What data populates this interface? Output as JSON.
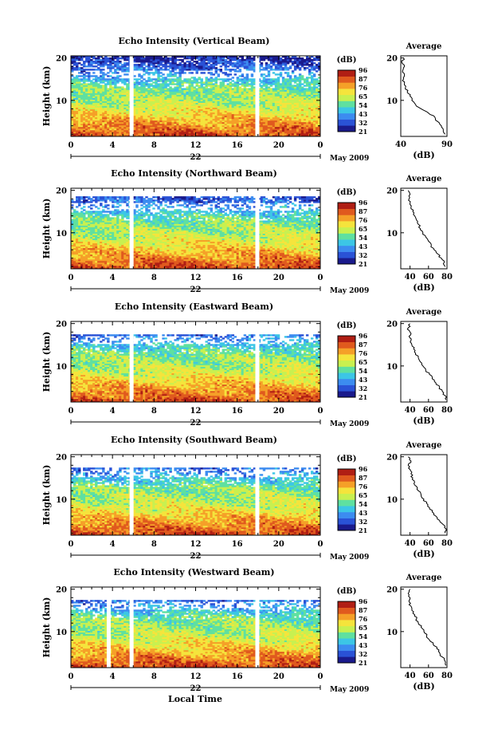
{
  "figure": {
    "xlabel": "Local Time",
    "colorbar_unit": "(dB)",
    "colorbar_ticks": [
      "96",
      "87",
      "76",
      "65",
      "54",
      "43",
      "32",
      "21"
    ],
    "colors": {
      "scale": [
        "#1a1a8c",
        "#2a52d6",
        "#3c8cf0",
        "#3cc6e6",
        "#5fe0a0",
        "#c8f050",
        "#f5e43c",
        "#f5a028",
        "#e05a1e",
        "#b01e14"
      ],
      "gap": "#ffffff",
      "line": "#000000"
    }
  },
  "chart_data": [
    {
      "type": "heatmap",
      "title": "Echo Intensity (Vertical Beam)",
      "ylabel": "Height (km)",
      "x_ticks": [
        "0",
        "4",
        "8",
        "12",
        "16",
        "20",
        "0"
      ],
      "xlim": [
        0,
        24
      ],
      "ylim": [
        1.5,
        20.5
      ],
      "y_ticks": [
        10,
        20
      ],
      "date_label": "22",
      "month_label": "May 2009",
      "colorbar": {
        "min": 21,
        "max": 96,
        "ticks": [
          96,
          87,
          76,
          65,
          54,
          43,
          32,
          21
        ],
        "unit": "(dB)"
      },
      "data_gaps_hours": [
        5.8,
        17.9
      ],
      "noise_top_km": 20,
      "profile": {
        "title": "Average",
        "xlabel": "(dB)",
        "x_ticks": [
          40,
          90
        ],
        "xlim": [
          40,
          90
        ],
        "y_ticks": [
          10,
          20
        ],
        "ylim": [
          1.5,
          20.5
        ],
        "height_km": [
          2,
          3,
          4,
          5,
          6,
          7,
          8,
          9,
          10,
          11,
          12,
          13,
          14,
          15,
          16,
          17,
          18,
          19,
          20
        ],
        "values_db": [
          88,
          86,
          84,
          80,
          77,
          70,
          62,
          56,
          52,
          50,
          47,
          45,
          44,
          43,
          44,
          42,
          44,
          41,
          43
        ]
      }
    },
    {
      "type": "heatmap",
      "title": "Echo Intensity (Northward Beam)",
      "ylabel": "Height (km)",
      "x_ticks": [
        "0",
        "4",
        "8",
        "12",
        "16",
        "20",
        "0"
      ],
      "xlim": [
        0,
        24
      ],
      "ylim": [
        1.5,
        20.5
      ],
      "y_ticks": [
        10,
        20
      ],
      "date_label": "22",
      "month_label": "May 2009",
      "colorbar": {
        "min": 21,
        "max": 96,
        "ticks": [
          96,
          87,
          76,
          65,
          54,
          43,
          32,
          21
        ],
        "unit": "(dB)"
      },
      "data_gaps_hours": [
        5.8,
        17.9
      ],
      "noise_top_km": 18,
      "profile": {
        "title": "Average",
        "xlabel": "(dB)",
        "x_ticks": [
          40,
          60,
          80
        ],
        "xlim": [
          30,
          80
        ],
        "y_ticks": [
          10,
          20
        ],
        "ylim": [
          1.5,
          20.5
        ],
        "height_km": [
          2,
          3,
          4,
          5,
          6,
          7,
          8,
          9,
          10,
          11,
          12,
          13,
          14,
          15,
          16,
          17,
          18,
          19,
          20
        ],
        "values_db": [
          78,
          77,
          74,
          70,
          66,
          63,
          60,
          57,
          54,
          51,
          49,
          47,
          45,
          43,
          41,
          40,
          39,
          40,
          38
        ]
      }
    },
    {
      "type": "heatmap",
      "title": "Echo Intensity (Eastward Beam)",
      "ylabel": "Height (km)",
      "x_ticks": [
        "0",
        "4",
        "8",
        "12",
        "16",
        "20",
        "0"
      ],
      "xlim": [
        0,
        24
      ],
      "ylim": [
        1.5,
        20.5
      ],
      "y_ticks": [
        10,
        20
      ],
      "date_label": "22",
      "month_label": "May 2009",
      "colorbar": {
        "min": 21,
        "max": 96,
        "ticks": [
          96,
          87,
          76,
          65,
          54,
          43,
          32,
          21
        ],
        "unit": "(dB)"
      },
      "data_gaps_hours": [
        5.8,
        17.9
      ],
      "noise_top_km": 17,
      "profile": {
        "title": "Average",
        "xlabel": "(dB)",
        "x_ticks": [
          40,
          60,
          80
        ],
        "xlim": [
          30,
          80
        ],
        "y_ticks": [
          10,
          20
        ],
        "ylim": [
          1.5,
          20.5
        ],
        "height_km": [
          2,
          3,
          4,
          5,
          6,
          7,
          8,
          9,
          10,
          11,
          12,
          13,
          14,
          15,
          16,
          17,
          18,
          19,
          20
        ],
        "values_db": [
          79,
          78,
          75,
          72,
          68,
          64,
          61,
          57,
          54,
          51,
          49,
          46,
          44,
          42,
          41,
          39,
          40,
          38,
          40
        ]
      }
    },
    {
      "type": "heatmap",
      "title": "Echo Intensity (Southward Beam)",
      "ylabel": "Height (km)",
      "x_ticks": [
        "0",
        "4",
        "8",
        "12",
        "16",
        "20",
        "0"
      ],
      "xlim": [
        0,
        24
      ],
      "ylim": [
        1.5,
        20.5
      ],
      "y_ticks": [
        10,
        20
      ],
      "date_label": "22",
      "month_label": "May 2009",
      "colorbar": {
        "min": 21,
        "max": 96,
        "ticks": [
          96,
          87,
          76,
          65,
          54,
          43,
          32,
          21
        ],
        "unit": "(dB)"
      },
      "data_gaps_hours": [
        5.8,
        17.9
      ],
      "noise_top_km": 17,
      "profile": {
        "title": "Average",
        "xlabel": "(dB)",
        "x_ticks": [
          40,
          60,
          80
        ],
        "xlim": [
          30,
          80
        ],
        "y_ticks": [
          10,
          20
        ],
        "ylim": [
          1.5,
          20.5
        ],
        "height_km": [
          2,
          3,
          4,
          5,
          6,
          7,
          8,
          9,
          10,
          11,
          12,
          13,
          14,
          15,
          16,
          17,
          18,
          19,
          20
        ],
        "values_db": [
          78,
          79,
          76,
          72,
          68,
          64,
          61,
          58,
          55,
          52,
          49,
          47,
          45,
          43,
          41,
          40,
          38,
          41,
          38
        ]
      }
    },
    {
      "type": "heatmap",
      "title": "Echo Intensity (Westward Beam)",
      "ylabel": "Height (km)",
      "x_ticks": [
        "0",
        "4",
        "8",
        "12",
        "16",
        "20",
        "0"
      ],
      "xlim": [
        0,
        24
      ],
      "ylim": [
        1.5,
        20.5
      ],
      "y_ticks": [
        10,
        20
      ],
      "date_label": "22",
      "month_label": "May 2009",
      "colorbar": {
        "min": 21,
        "max": 96,
        "ticks": [
          96,
          87,
          76,
          65,
          54,
          43,
          32,
          21
        ],
        "unit": "(dB)"
      },
      "data_gaps_hours": [
        3.6,
        5.8,
        17.9
      ],
      "noise_top_km": 17,
      "profile": {
        "title": "Average",
        "xlabel": "(dB)",
        "x_ticks": [
          40,
          60,
          80
        ],
        "xlim": [
          30,
          80
        ],
        "y_ticks": [
          10,
          20
        ],
        "ylim": [
          1.5,
          20.5
        ],
        "height_km": [
          2,
          3,
          4,
          5,
          6,
          7,
          8,
          9,
          10,
          11,
          12,
          13,
          14,
          15,
          16,
          17,
          18,
          19,
          20
        ],
        "values_db": [
          79,
          78,
          75,
          72,
          69,
          65,
          61,
          58,
          55,
          52,
          49,
          47,
          45,
          42,
          41,
          39,
          40,
          38,
          40
        ]
      }
    }
  ]
}
